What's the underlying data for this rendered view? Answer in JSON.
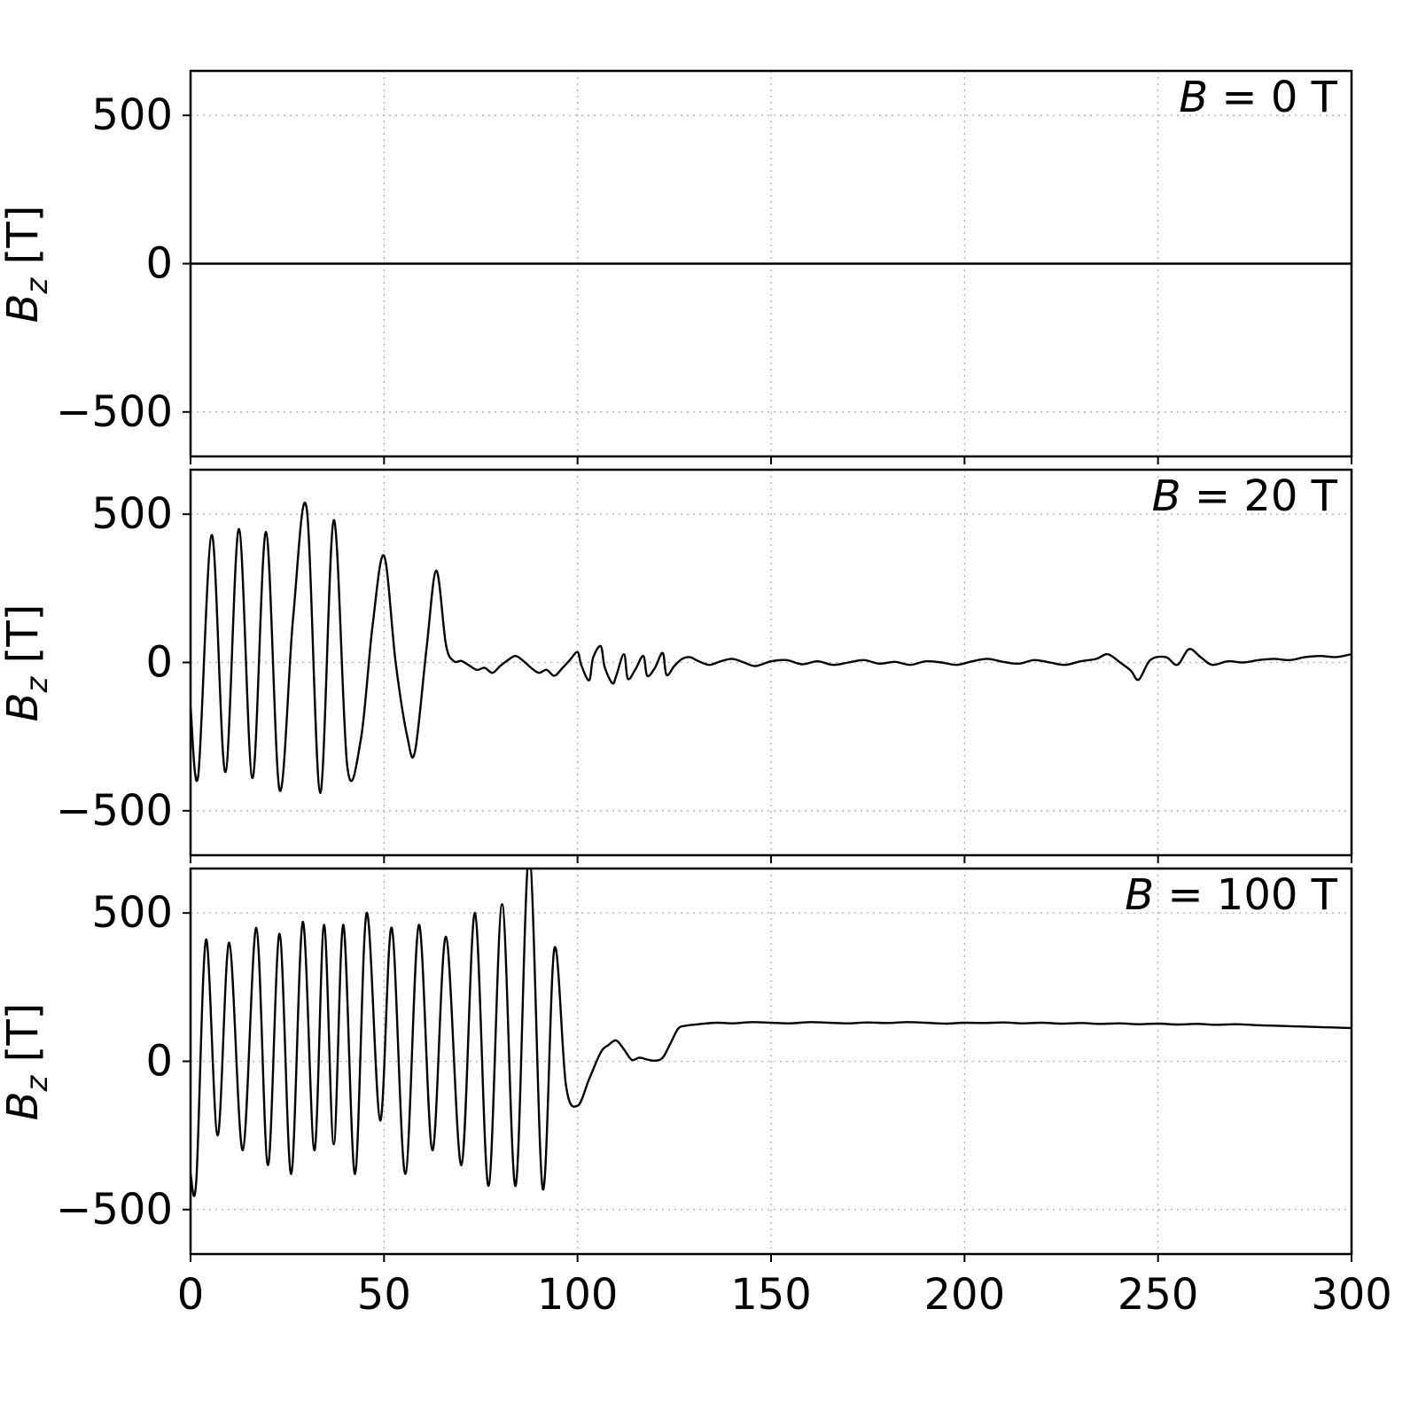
{
  "figure": {
    "background": "#ffffff",
    "line_color": "#000000",
    "grid_color": "#b0b0b0",
    "axis_color": "#000000"
  },
  "ylabel": {
    "sym": "B",
    "sub": "z",
    "rest": " [T]"
  },
  "chart_data": {
    "type": "line",
    "title": "",
    "xlabel": "",
    "ylabel": "Bz [T]",
    "xlim": [
      0,
      300
    ],
    "ylim": [
      -650,
      650
    ],
    "xticks": [
      0,
      50,
      100,
      150,
      200,
      250,
      300
    ],
    "yticks": [
      -500,
      0,
      500
    ],
    "grid": true,
    "legend": "none",
    "panels": [
      {
        "name": "B = 0 T",
        "annotation": {
          "sym": "B",
          "rest": " = 0 T"
        },
        "points": [
          [
            0,
            0
          ],
          [
            300,
            0
          ]
        ]
      },
      {
        "name": "B = 20 T",
        "annotation": {
          "sym": "B",
          "rest": " = 20 T"
        },
        "points": [
          [
            0,
            -150
          ],
          [
            2,
            -380
          ],
          [
            5.5,
            430
          ],
          [
            9,
            -370
          ],
          [
            12.5,
            450
          ],
          [
            16,
            -390
          ],
          [
            19.5,
            440
          ],
          [
            23,
            -430
          ],
          [
            26.5,
            150
          ],
          [
            30,
            520
          ],
          [
            33.5,
            -440
          ],
          [
            37,
            480
          ],
          [
            40.5,
            -350
          ],
          [
            44,
            -260
          ],
          [
            47,
            120
          ],
          [
            50,
            360
          ],
          [
            53,
            0
          ],
          [
            56,
            -250
          ],
          [
            58,
            -300
          ],
          [
            61,
            50
          ],
          [
            63.5,
            310
          ],
          [
            66,
            60
          ],
          [
            68,
            5
          ],
          [
            70,
            5
          ],
          [
            72,
            -10
          ],
          [
            74,
            -25
          ],
          [
            76,
            -18
          ],
          [
            78,
            -35
          ],
          [
            80,
            -12
          ],
          [
            82,
            8
          ],
          [
            84,
            22
          ],
          [
            86,
            5
          ],
          [
            88,
            -18
          ],
          [
            90,
            -35
          ],
          [
            92,
            -25
          ],
          [
            94,
            -45
          ],
          [
            96,
            -20
          ],
          [
            98,
            8
          ],
          [
            100,
            35
          ],
          [
            101,
            -10
          ],
          [
            103,
            -60
          ],
          [
            104,
            15
          ],
          [
            106,
            55
          ],
          [
            107,
            -15
          ],
          [
            109,
            -70
          ],
          [
            110,
            -45
          ],
          [
            112,
            28
          ],
          [
            113,
            -55
          ],
          [
            115,
            -22
          ],
          [
            117,
            22
          ],
          [
            118,
            -45
          ],
          [
            120,
            -18
          ],
          [
            122,
            32
          ],
          [
            123,
            -42
          ],
          [
            125,
            -12
          ],
          [
            127,
            12
          ],
          [
            129,
            18
          ],
          [
            131,
            6
          ],
          [
            134,
            -8
          ],
          [
            137,
            4
          ],
          [
            140,
            12
          ],
          [
            143,
            0
          ],
          [
            146,
            -12
          ],
          [
            150,
            4
          ],
          [
            154,
            8
          ],
          [
            158,
            -6
          ],
          [
            162,
            4
          ],
          [
            166,
            -8
          ],
          [
            170,
            0
          ],
          [
            174,
            8
          ],
          [
            178,
            -4
          ],
          [
            182,
            2
          ],
          [
            186,
            -8
          ],
          [
            190,
            4
          ],
          [
            194,
            0
          ],
          [
            198,
            -8
          ],
          [
            202,
            4
          ],
          [
            206,
            12
          ],
          [
            210,
            2
          ],
          [
            214,
            -4
          ],
          [
            218,
            8
          ],
          [
            222,
            0
          ],
          [
            226,
            -8
          ],
          [
            230,
            4
          ],
          [
            234,
            12
          ],
          [
            237,
            28
          ],
          [
            240,
            2
          ],
          [
            243,
            -28
          ],
          [
            245,
            -58
          ],
          [
            248,
            8
          ],
          [
            252,
            18
          ],
          [
            255,
            -8
          ],
          [
            258,
            45
          ],
          [
            261,
            18
          ],
          [
            264,
            -8
          ],
          [
            268,
            4
          ],
          [
            272,
            0
          ],
          [
            276,
            8
          ],
          [
            280,
            12
          ],
          [
            284,
            8
          ],
          [
            288,
            18
          ],
          [
            292,
            22
          ],
          [
            296,
            18
          ],
          [
            300,
            28
          ]
        ]
      },
      {
        "name": "B = 100 T",
        "annotation": {
          "sym": "B",
          "rest": " = 100 T"
        },
        "points": [
          [
            0,
            -380
          ],
          [
            1.5,
            -400
          ],
          [
            4,
            410
          ],
          [
            7,
            -250
          ],
          [
            10,
            400
          ],
          [
            13.5,
            -300
          ],
          [
            17,
            450
          ],
          [
            20,
            -350
          ],
          [
            23,
            430
          ],
          [
            26,
            -380
          ],
          [
            29,
            470
          ],
          [
            32,
            -300
          ],
          [
            34.5,
            460
          ],
          [
            37,
            -280
          ],
          [
            39.5,
            460
          ],
          [
            42.5,
            -380
          ],
          [
            45.5,
            500
          ],
          [
            49,
            -200
          ],
          [
            52,
            450
          ],
          [
            55.5,
            -380
          ],
          [
            59,
            460
          ],
          [
            62.5,
            -300
          ],
          [
            66,
            420
          ],
          [
            70,
            -350
          ],
          [
            73.5,
            500
          ],
          [
            77,
            -420
          ],
          [
            80.5,
            530
          ],
          [
            84,
            -420
          ],
          [
            87.5,
            700
          ],
          [
            91,
            -430
          ],
          [
            94,
            380
          ],
          [
            97,
            -80
          ],
          [
            100,
            -150
          ],
          [
            103,
            -60
          ],
          [
            106,
            30
          ],
          [
            108,
            55
          ],
          [
            110,
            70
          ],
          [
            112,
            40
          ],
          [
            114,
            5
          ],
          [
            116,
            12
          ],
          [
            118,
            6
          ],
          [
            120,
            2
          ],
          [
            122,
            12
          ],
          [
            124,
            60
          ],
          [
            126,
            110
          ],
          [
            128,
            120
          ],
          [
            132,
            126
          ],
          [
            136,
            130
          ],
          [
            140,
            128
          ],
          [
            145,
            132
          ],
          [
            150,
            130
          ],
          [
            155,
            128
          ],
          [
            160,
            132
          ],
          [
            165,
            130
          ],
          [
            170,
            128
          ],
          [
            175,
            131
          ],
          [
            180,
            129
          ],
          [
            185,
            132
          ],
          [
            190,
            130
          ],
          [
            195,
            127
          ],
          [
            200,
            130
          ],
          [
            205,
            129
          ],
          [
            210,
            131
          ],
          [
            215,
            128
          ],
          [
            220,
            130
          ],
          [
            225,
            127
          ],
          [
            230,
            129
          ],
          [
            235,
            126
          ],
          [
            240,
            128
          ],
          [
            245,
            125
          ],
          [
            250,
            127
          ],
          [
            255,
            124
          ],
          [
            260,
            126
          ],
          [
            265,
            123
          ],
          [
            270,
            125
          ],
          [
            275,
            122
          ],
          [
            280,
            120
          ],
          [
            285,
            118
          ],
          [
            290,
            116
          ],
          [
            295,
            114
          ],
          [
            300,
            112
          ]
        ]
      }
    ]
  }
}
